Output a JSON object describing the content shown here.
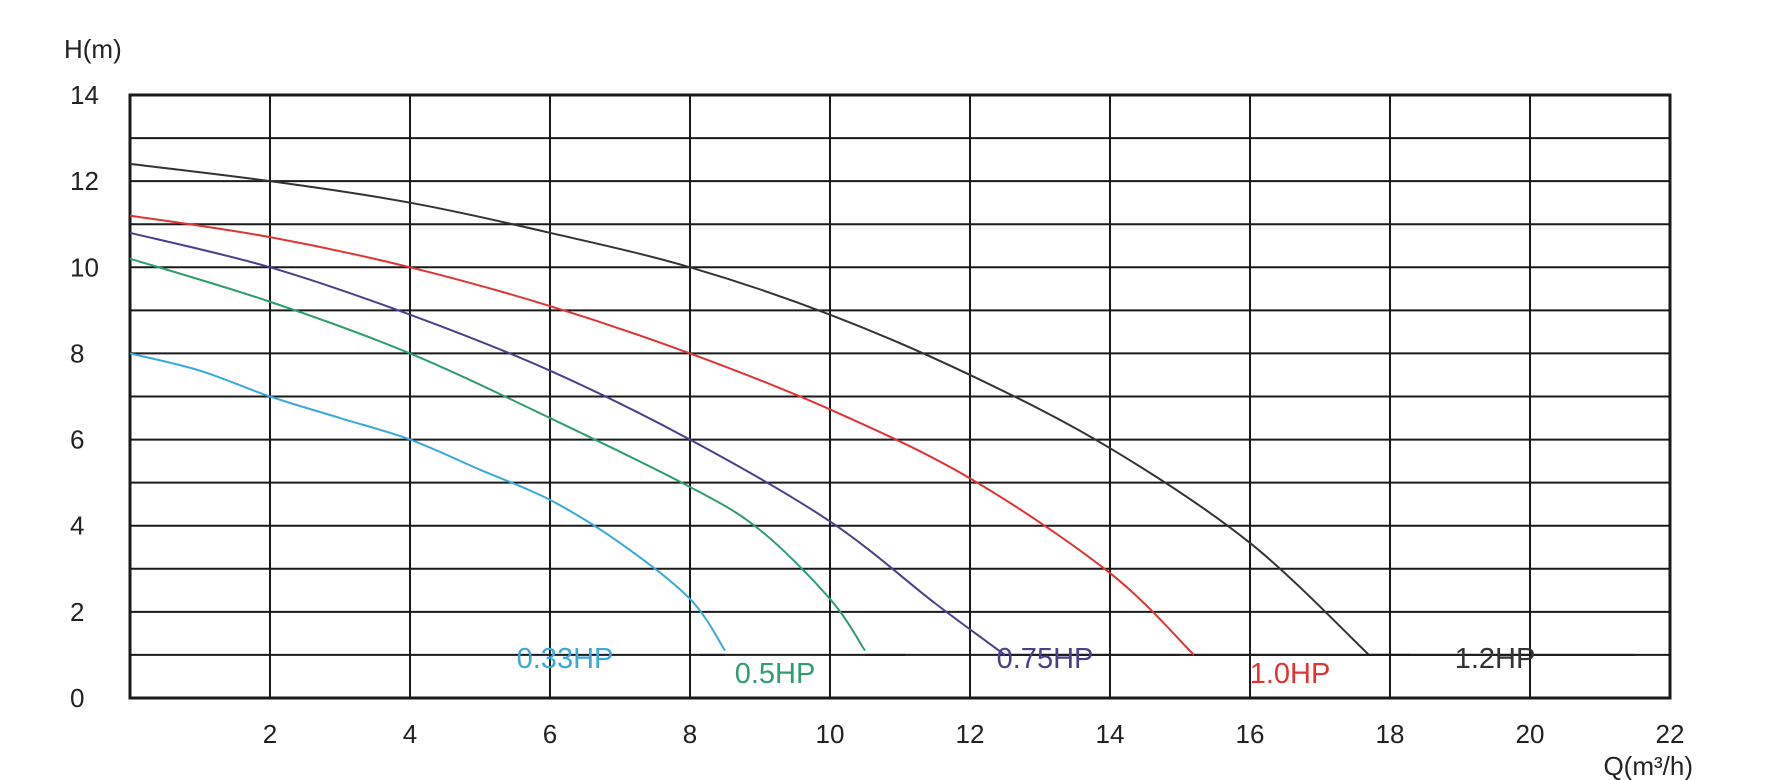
{
  "chart_data": {
    "type": "line",
    "title": "",
    "xlabel": "Q(m³/h)",
    "ylabel": "H(m)",
    "xlim": [
      0,
      22
    ],
    "ylim": [
      0,
      14
    ],
    "x_ticks": [
      2,
      4,
      6,
      8,
      10,
      12,
      14,
      16,
      18,
      20,
      22
    ],
    "y_ticks": [
      0,
      2,
      4,
      6,
      8,
      10,
      12,
      14
    ],
    "grid": true,
    "legend": "inline labels at curve ends",
    "series": [
      {
        "name": "0.33HP",
        "color": "#3aa8d8",
        "x": [
          0,
          1,
          2,
          3,
          4,
          5,
          6,
          7,
          8,
          8.5
        ],
        "y": [
          8.0,
          7.6,
          7.0,
          6.5,
          6.0,
          5.3,
          4.6,
          3.6,
          2.3,
          1.1
        ]
      },
      {
        "name": "0.5HP",
        "color": "#2e9e6e",
        "x": [
          0,
          2,
          4,
          6,
          8,
          9,
          10,
          10.5
        ],
        "y": [
          10.2,
          9.2,
          8.0,
          6.5,
          4.9,
          3.9,
          2.3,
          1.1
        ]
      },
      {
        "name": "0.75HP",
        "color": "#4a3f8c",
        "x": [
          0,
          2,
          4,
          6,
          8,
          10,
          11.5,
          12.5
        ],
        "y": [
          10.8,
          10.0,
          8.9,
          7.6,
          6.0,
          4.1,
          2.2,
          1.0
        ]
      },
      {
        "name": "1.0HP",
        "color": "#e03434",
        "x": [
          0,
          2,
          4,
          6,
          8,
          10,
          12,
          14,
          15.2
        ],
        "y": [
          11.2,
          10.7,
          10.0,
          9.1,
          8.0,
          6.7,
          5.1,
          2.9,
          1.0
        ]
      },
      {
        "name": "1.2HP",
        "color": "#333333",
        "x": [
          0,
          2,
          4,
          6,
          8,
          10,
          12,
          14,
          16,
          17.7
        ],
        "y": [
          12.4,
          12.0,
          11.5,
          10.8,
          10.0,
          8.9,
          7.5,
          5.8,
          3.6,
          1.0
        ]
      }
    ]
  }
}
